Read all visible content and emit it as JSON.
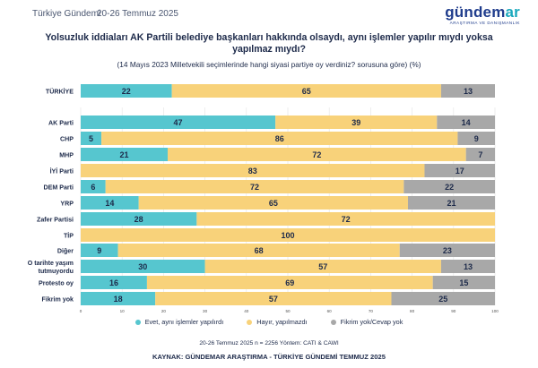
{
  "header": {
    "brand_text": "Türkiye Gündemi",
    "date_text": "20-26 Temmuz 2025",
    "logo_text": "gündemar",
    "logo_subtext": "ARAŞTIRMA VE DANIŞMANLIK"
  },
  "colors": {
    "evet": "#56c6cf",
    "hayir": "#f8d27a",
    "fikrim_yok": "#a8a8a8",
    "text": "#1d2a4a",
    "grid": "#e7e7e7"
  },
  "chart_data": {
    "type": "bar",
    "orientation": "horizontal",
    "stacked": true,
    "title": "Yolsuzluk iddiaları AK Partili belediye başkanları hakkında olsaydı, aynı işlemler yapılır mıydı yoksa yapılmaz mıydı?",
    "subtitle": "(14 Mayıs 2023 Milletvekili seçimlerinde hangi siyasi partiye oy verdiniz? sorusuna göre) (%)",
    "categories": [
      "TÜRKİYE",
      "AK Parti",
      "CHP",
      "MHP",
      "İYİ Parti",
      "DEM Parti",
      "YRP",
      "Zafer Partisi",
      "TİP",
      "Diğer",
      "O tarihte yaşım tutmuyordu",
      "Protesto oy",
      "Fikrim yok"
    ],
    "category_lines": [
      [
        "TÜRKİYE"
      ],
      [
        "AK Parti"
      ],
      [
        "CHP"
      ],
      [
        "MHP"
      ],
      [
        "İYİ Parti"
      ],
      [
        "DEM Parti"
      ],
      [
        "YRP"
      ],
      [
        "Zafer Partisi"
      ],
      [
        "TİP"
      ],
      [
        "Diğer"
      ],
      [
        "O tarihte yaşım",
        "tutmuyordu"
      ],
      [
        "Protesto oy"
      ],
      [
        "Fikrim yok"
      ]
    ],
    "series": [
      {
        "name": "Evet, aynı işlemler yapılırdı",
        "color": "#56c6cf",
        "values": [
          22,
          47,
          5,
          21,
          0,
          6,
          14,
          28,
          0,
          9,
          30,
          16,
          18
        ]
      },
      {
        "name": "Hayır, yapılmazdı",
        "color": "#f8d27a",
        "values": [
          65,
          39,
          86,
          72,
          83,
          72,
          65,
          72,
          100,
          68,
          57,
          69,
          57
        ]
      },
      {
        "name": "Fikrim yok/Cevap yok",
        "color": "#a8a8a8",
        "values": [
          13,
          14,
          9,
          7,
          17,
          22,
          21,
          0,
          0,
          23,
          13,
          15,
          25
        ]
      }
    ],
    "xlim": [
      0,
      100
    ],
    "xticks": [
      0,
      10,
      20,
      30,
      40,
      50,
      60,
      70,
      80,
      90,
      100
    ],
    "grid": true,
    "legend": "bottom"
  },
  "footer": {
    "method": "20-26 Temmuz 2025 n = 2256 Yöntem: CATI & CAWI",
    "source": "KAYNAK: GÜNDEMAR ARAŞTIRMA - TÜRKİYE GÜNDEMİ TEMMUZ 2025"
  }
}
